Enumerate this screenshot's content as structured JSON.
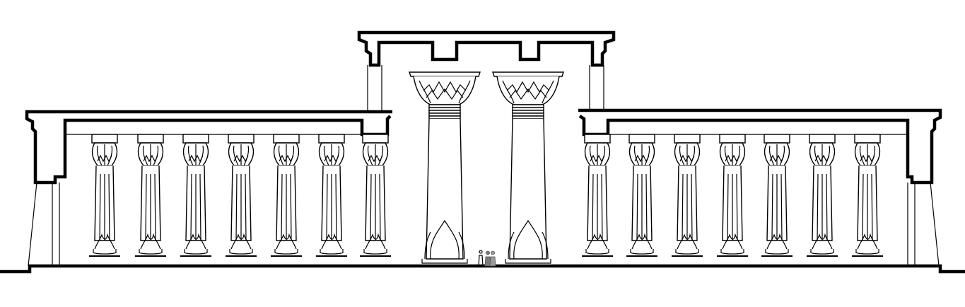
{
  "drawing": {
    "subject": "temple-hypostyle-hall-elevation",
    "colors": {
      "line": "#000000",
      "background": "#ffffff",
      "figure": "#7a7a7a"
    },
    "small_columns_left": 7,
    "small_columns_right": 7,
    "central_columns": 2,
    "human_figures": 3
  }
}
